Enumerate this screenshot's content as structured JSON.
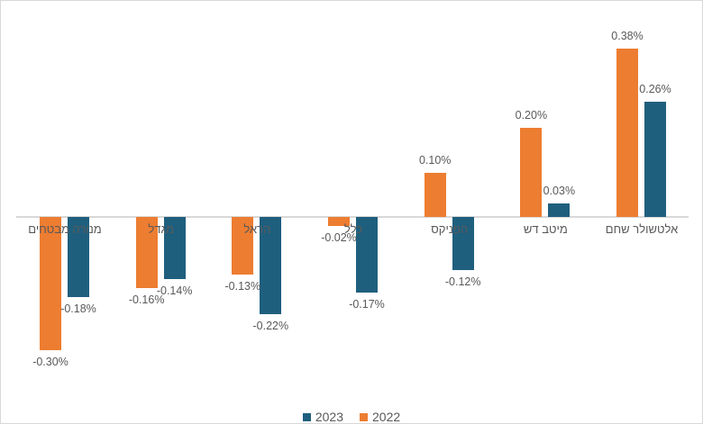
{
  "chart_data": {
    "type": "bar",
    "title": "",
    "xlabel": "",
    "ylabel": "",
    "categories": [
      "מנורה מבטחים",
      "מגדל",
      "הראל",
      "כלל",
      "הפניקס",
      "מיטב דש",
      "אלטשולר שחם"
    ],
    "series": [
      {
        "name": "2022",
        "color": "#ED7D31",
        "values": [
          -0.3,
          -0.16,
          -0.13,
          -0.02,
          0.1,
          0.2,
          0.38
        ],
        "labels": [
          "-0.30%",
          "-0.16%",
          "-0.13%",
          "-0.02%",
          "0.10%",
          "0.20%",
          "0.38%"
        ]
      },
      {
        "name": "2023",
        "color": "#1F5F7E",
        "values": [
          -0.18,
          -0.14,
          -0.22,
          -0.17,
          -0.12,
          0.03,
          0.26
        ],
        "labels": [
          "-0.18%",
          "-0.14%",
          "-0.22%",
          "-0.17%",
          "-0.12%",
          "0.03%",
          "0.26%"
        ]
      }
    ],
    "value_unit": "%",
    "ylim": [
      -0.35,
      0.45
    ],
    "grid": false,
    "data_labels": true,
    "legend_position": "bottom",
    "legend_order": [
      "2023",
      "2022"
    ]
  },
  "legend": {
    "items": [
      {
        "label": "2023",
        "color": "#1F5F7E"
      },
      {
        "label": "2022",
        "color": "#ED7D31"
      }
    ]
  },
  "colors": {
    "background": "#FFFFFF",
    "frame_border": "#D9D9D9",
    "axis_line": "#D9D9D9",
    "label_text": "#595959"
  }
}
